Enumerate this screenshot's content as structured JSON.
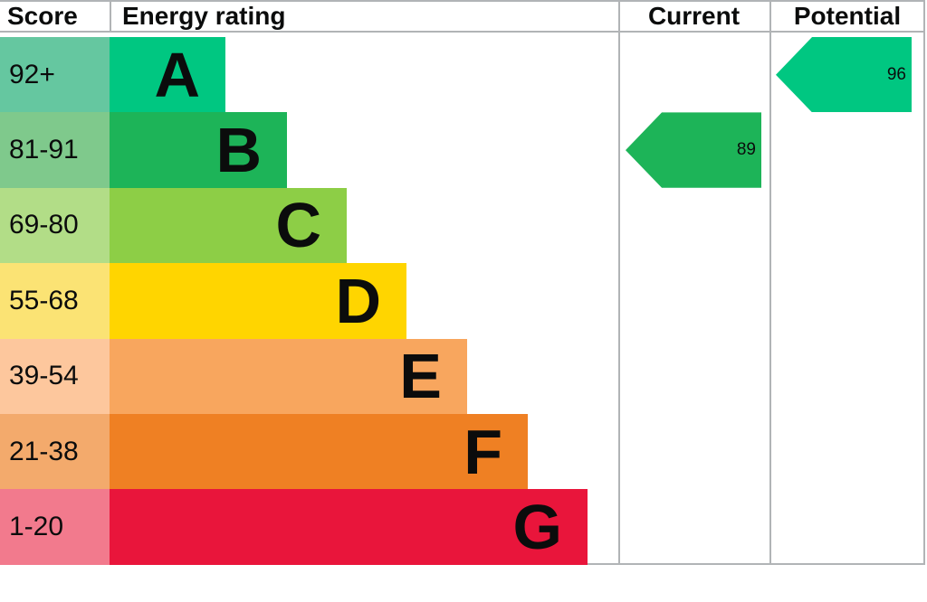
{
  "header": {
    "score": "Score",
    "energy_rating": "Energy rating",
    "current": "Current",
    "potential": "Potential"
  },
  "bands": [
    {
      "letter": "A",
      "score_range": "92+",
      "color": "#00c781",
      "tint_color": "#65c7a0"
    },
    {
      "letter": "B",
      "score_range": "81-91",
      "color": "#1db458",
      "tint_color": "#7fc98c"
    },
    {
      "letter": "C",
      "score_range": "69-80",
      "color": "#8dce46",
      "tint_color": "#b2dd87"
    },
    {
      "letter": "D",
      "score_range": "55-68",
      "color": "#ffd500",
      "tint_color": "#fbe374"
    },
    {
      "letter": "E",
      "score_range": "39-54",
      "color": "#f8a65e",
      "tint_color": "#fdc79d"
    },
    {
      "letter": "F",
      "score_range": "21-38",
      "color": "#ef8023",
      "tint_color": "#f3aa6c"
    },
    {
      "letter": "G",
      "score_range": "1-20",
      "color": "#e9153b",
      "tint_color": "#f27a8d"
    }
  ],
  "current": {
    "value": "89",
    "band": "B",
    "color": "#1db458"
  },
  "potential": {
    "value": "96",
    "band": "A",
    "color": "#00c781"
  },
  "border_color": "#b1b4b6",
  "chart_data": {
    "type": "bar",
    "title": "Energy rating",
    "columns": [
      "Score",
      "Energy rating",
      "Current",
      "Potential"
    ],
    "categories": [
      "A",
      "B",
      "C",
      "D",
      "E",
      "F",
      "G"
    ],
    "score_ranges": [
      "92+",
      "81-91",
      "69-80",
      "55-68",
      "39-54",
      "21-38",
      "1-20"
    ],
    "current_rating": 89,
    "current_band": "B",
    "potential_rating": 96,
    "potential_band": "A",
    "band_colors": {
      "A": "#00c781",
      "B": "#1db458",
      "C": "#8dce46",
      "D": "#ffd500",
      "E": "#f8a65e",
      "F": "#ef8023",
      "G": "#e9153b"
    },
    "score_cell_colors": {
      "A": "#65c7a0",
      "B": "#7fc98c",
      "C": "#b2dd87",
      "D": "#fbe374",
      "E": "#fdc79d",
      "F": "#f3aa6c",
      "G": "#f27a8d"
    }
  }
}
